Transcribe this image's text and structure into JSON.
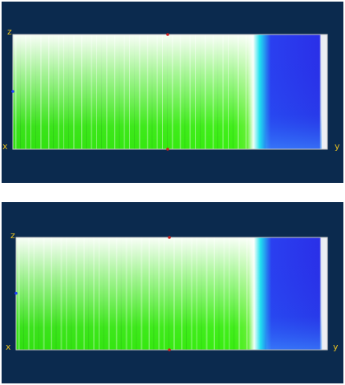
{
  "panels": [
    {
      "z_label": "z",
      "x_label": "x",
      "y_label": "y"
    },
    {
      "z_label": "z",
      "x_label": "x",
      "y_label": "y"
    }
  ]
}
